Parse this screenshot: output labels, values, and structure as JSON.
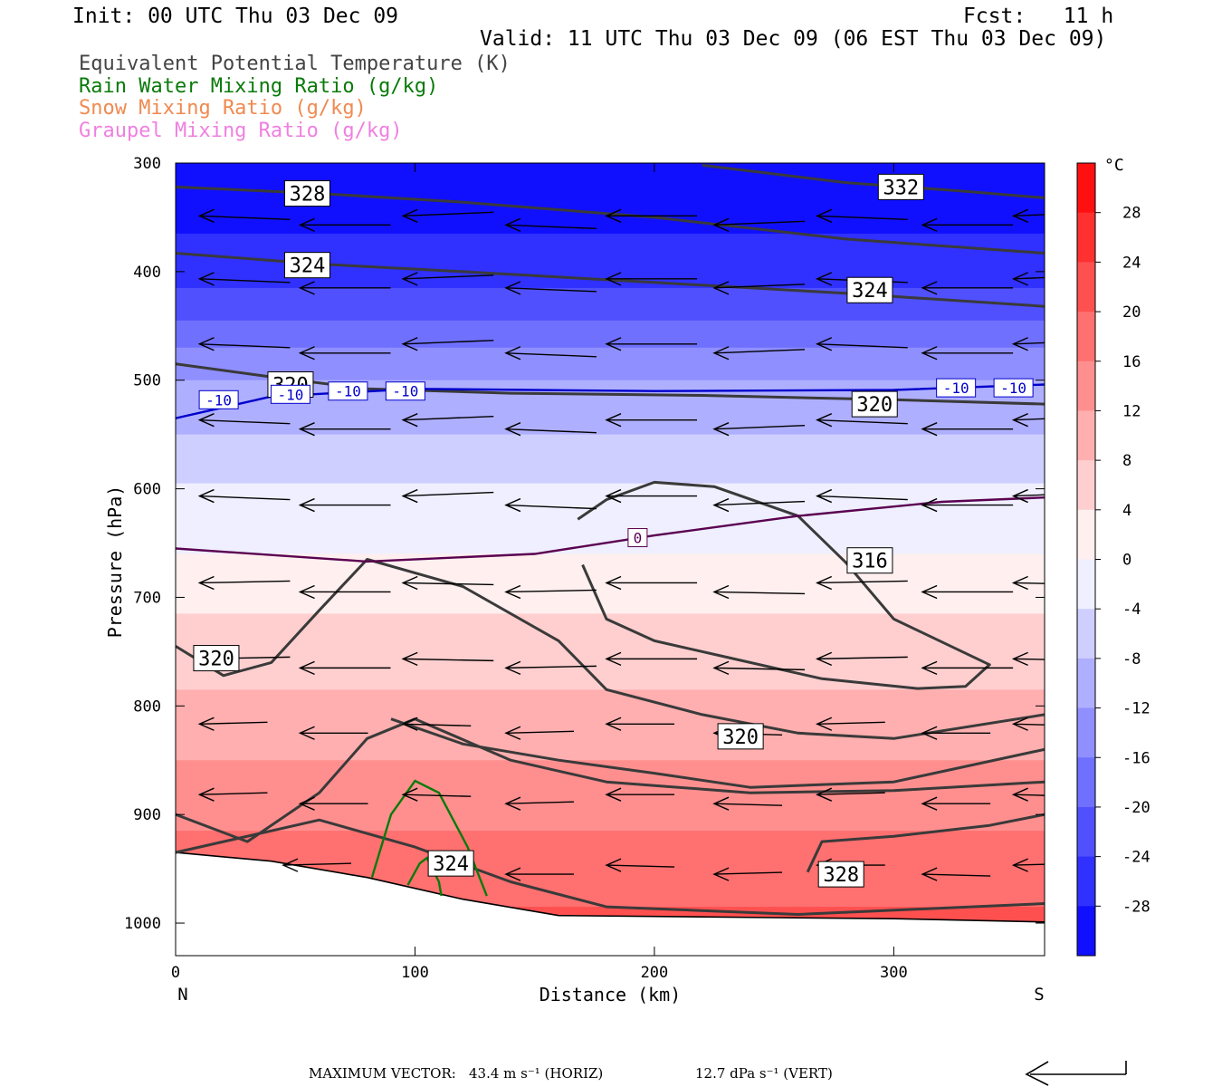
{
  "header": {
    "init": "Init: 00 UTC Thu 03 Dec 09",
    "fcst": "Fcst:   11 h",
    "valid": "Valid: 11 UTC Thu 03 Dec 09 (06 EST Thu 03 Dec 09)"
  },
  "legend": [
    {
      "text": "Equivalent Potential Temperature (K)",
      "color": "#444444"
    },
    {
      "text": "Rain Water Mixing Ratio (g/kg)",
      "color": "#0a7a0a"
    },
    {
      "text": "Snow Mixing Ratio (g/kg)",
      "color": "#f08a50"
    },
    {
      "text": "Graupel Mixing Ratio (g/kg)",
      "color": "#f080e0"
    }
  ],
  "chart_data": {
    "type": "heatmap",
    "xlabel": "Distance (km)",
    "ylabel": "Pressure (hPa)",
    "xlim": [
      0,
      363
    ],
    "ylim": [
      300,
      1030
    ],
    "xticks": [
      0,
      100,
      200,
      300
    ],
    "yticks": [
      300,
      400,
      500,
      600,
      700,
      800,
      900,
      1000
    ],
    "x_end_labels": {
      "left": "N",
      "right": "S"
    },
    "colorbar": {
      "unit": "°C",
      "ticks": [
        28,
        24,
        20,
        16,
        12,
        8,
        4,
        0,
        -4,
        -8,
        -12,
        -16,
        -20,
        -24,
        -28
      ],
      "range": [
        -32,
        32
      ]
    },
    "temperature_by_pressure": [
      {
        "p": 300,
        "t": -32
      },
      {
        "p": 400,
        "t": -26
      },
      {
        "p": 500,
        "t": -12
      },
      {
        "p": 560,
        "t": -7
      },
      {
        "p": 620,
        "t": -2
      },
      {
        "p": 660,
        "t": 0
      },
      {
        "p": 700,
        "t": 3
      },
      {
        "p": 750,
        "t": 6
      },
      {
        "p": 800,
        "t": 9
      },
      {
        "p": 850,
        "t": 12
      },
      {
        "p": 900,
        "t": 15
      },
      {
        "p": 950,
        "t": 18
      },
      {
        "p": 1000,
        "t": 21
      }
    ],
    "terrain_surface": [
      {
        "x": 0,
        "p": 935
      },
      {
        "x": 40,
        "p": 943
      },
      {
        "x": 80,
        "p": 958
      },
      {
        "x": 120,
        "p": 978
      },
      {
        "x": 160,
        "p": 993
      },
      {
        "x": 250,
        "p": 995
      },
      {
        "x": 300,
        "p": 996
      },
      {
        "x": 363,
        "p": 999
      }
    ],
    "isotherms": [
      {
        "label": "-10",
        "color": "#0000cc",
        "label_positions": [
          [
            18,
            518
          ],
          [
            48,
            513
          ],
          [
            72,
            510
          ],
          [
            96,
            510
          ],
          [
            326,
            507
          ],
          [
            350,
            507
          ]
        ],
        "points": [
          [
            0,
            535
          ],
          [
            40,
            515
          ],
          [
            100,
            508
          ],
          [
            200,
            510
          ],
          [
            300,
            509
          ],
          [
            363,
            504
          ]
        ]
      },
      {
        "label": "0",
        "color": "#5a0050",
        "label_positions": [
          [
            193,
            645
          ]
        ],
        "points": [
          [
            0,
            655
          ],
          [
            80,
            667
          ],
          [
            150,
            660
          ],
          [
            200,
            643
          ],
          [
            260,
            625
          ],
          [
            320,
            612
          ],
          [
            363,
            608
          ]
        ]
      }
    ],
    "theta_e_contours": [
      {
        "label": "332",
        "label_positions": [
          [
            303,
            322
          ]
        ],
        "points": [
          [
            220,
            302
          ],
          [
            280,
            318
          ],
          [
            330,
            326
          ],
          [
            363,
            332
          ]
        ]
      },
      {
        "label": "328",
        "label_positions": [
          [
            55,
            328
          ]
        ],
        "points": [
          [
            0,
            322
          ],
          [
            60,
            328
          ],
          [
            120,
            336
          ],
          [
            200,
            350
          ],
          [
            280,
            370
          ],
          [
            363,
            383
          ]
        ]
      },
      {
        "label": "324",
        "label_positions": [
          [
            55,
            394
          ],
          [
            290,
            417
          ]
        ],
        "points": [
          [
            0,
            383
          ],
          [
            60,
            393
          ],
          [
            120,
            400
          ],
          [
            200,
            410
          ],
          [
            280,
            420
          ],
          [
            363,
            432
          ]
        ]
      },
      {
        "label": "320",
        "label_positions": [
          [
            48,
            504
          ],
          [
            292,
            522
          ]
        ],
        "points": [
          [
            0,
            485
          ],
          [
            40,
            497
          ],
          [
            80,
            508
          ],
          [
            140,
            512
          ],
          [
            220,
            514
          ],
          [
            300,
            518
          ],
          [
            363,
            522
          ]
        ]
      },
      {
        "label": "316",
        "label_positions": [
          [
            290,
            666
          ]
        ],
        "points": [
          [
            168,
            628
          ],
          [
            180,
            610
          ],
          [
            200,
            594
          ],
          [
            225,
            598
          ],
          [
            260,
            625
          ],
          [
            280,
            668
          ],
          [
            300,
            720
          ],
          [
            340,
            762
          ],
          [
            330,
            782
          ],
          [
            310,
            784
          ],
          [
            270,
            775
          ],
          [
            230,
            755
          ],
          [
            200,
            740
          ],
          [
            180,
            720
          ],
          [
            170,
            670
          ]
        ]
      },
      {
        "label": "320",
        "label_positions": [
          [
            17,
            756
          ]
        ],
        "points": [
          [
            0,
            745
          ],
          [
            20,
            772
          ],
          [
            40,
            760
          ],
          [
            60,
            712
          ],
          [
            80,
            665
          ],
          [
            120,
            690
          ],
          [
            160,
            740
          ],
          [
            180,
            785
          ],
          [
            220,
            808
          ],
          [
            260,
            825
          ],
          [
            300,
            830
          ],
          [
            363,
            808
          ]
        ]
      },
      {
        "label": "320",
        "label_positions": [
          [
            236,
            828
          ]
        ],
        "points": [
          [
            90,
            812
          ],
          [
            120,
            835
          ],
          [
            160,
            850
          ],
          [
            200,
            862
          ],
          [
            240,
            875
          ],
          [
            300,
            870
          ],
          [
            363,
            840
          ]
        ]
      },
      {
        "label": "324",
        "label_positions": [
          [
            115,
            945
          ]
        ],
        "points": [
          [
            0,
            900
          ],
          [
            30,
            925
          ],
          [
            60,
            880
          ],
          [
            80,
            830
          ],
          [
            100,
            812
          ],
          [
            140,
            850
          ],
          [
            180,
            870
          ],
          [
            240,
            880
          ],
          [
            300,
            878
          ],
          [
            363,
            870
          ]
        ]
      },
      {
        "label": "328",
        "label_positions": [
          [
            278,
            955
          ]
        ],
        "points": [
          [
            0,
            935
          ],
          [
            60,
            905
          ],
          [
            100,
            930
          ],
          [
            140,
            962
          ],
          [
            180,
            985
          ],
          [
            260,
            992
          ],
          [
            363,
            982
          ]
        ]
      },
      {
        "label": "",
        "label_positions": [],
        "points": [
          [
            264,
            953
          ],
          [
            270,
            925
          ],
          [
            300,
            920
          ],
          [
            340,
            910
          ],
          [
            363,
            900
          ]
        ]
      }
    ],
    "rain_water_contours": [
      {
        "points": [
          [
            82,
            958
          ],
          [
            90,
            900
          ],
          [
            100,
            869
          ],
          [
            110,
            880
          ],
          [
            122,
            930
          ],
          [
            130,
            975
          ]
        ]
      },
      {
        "points": [
          [
            97,
            965
          ],
          [
            102,
            945
          ],
          [
            105,
            940
          ],
          [
            110,
            962
          ],
          [
            111,
            975
          ]
        ]
      }
    ],
    "wind_arrows_rows": [
      {
        "p": 352,
        "xs": [
          10,
          52,
          95,
          138,
          180,
          225,
          268,
          312,
          350
        ]
      },
      {
        "p": 410,
        "xs": [
          10,
          52,
          95,
          138,
          180,
          225,
          268,
          312,
          350
        ]
      },
      {
        "p": 470,
        "xs": [
          10,
          52,
          95,
          138,
          180,
          225,
          268,
          312,
          350
        ]
      },
      {
        "p": 540,
        "xs": [
          10,
          52,
          95,
          138,
          180,
          225,
          268,
          312,
          350
        ]
      },
      {
        "p": 610,
        "xs": [
          10,
          52,
          95,
          138,
          180,
          225,
          268,
          312,
          350
        ]
      },
      {
        "p": 690,
        "xs": [
          10,
          52,
          95,
          138,
          180,
          225,
          268,
          312,
          350
        ]
      },
      {
        "p": 760,
        "xs": [
          10,
          52,
          95,
          138,
          180,
          225,
          268,
          312,
          350
        ]
      },
      {
        "p": 820,
        "xs": [
          10,
          52,
          95,
          138,
          180,
          225,
          268,
          312,
          350
        ]
      },
      {
        "p": 885,
        "xs": [
          10,
          52,
          95,
          138,
          180,
          225,
          268,
          312,
          350
        ]
      },
      {
        "p": 950,
        "xs": [
          45,
          138,
          180,
          225,
          268,
          312,
          350
        ]
      }
    ]
  },
  "footer": {
    "max_vector_label": "MAXIMUM VECTOR:",
    "horiz": "43.4 m s⁻¹ (HORIZ)",
    "vert": "12.7 dPa s⁻¹ (VERT)"
  }
}
